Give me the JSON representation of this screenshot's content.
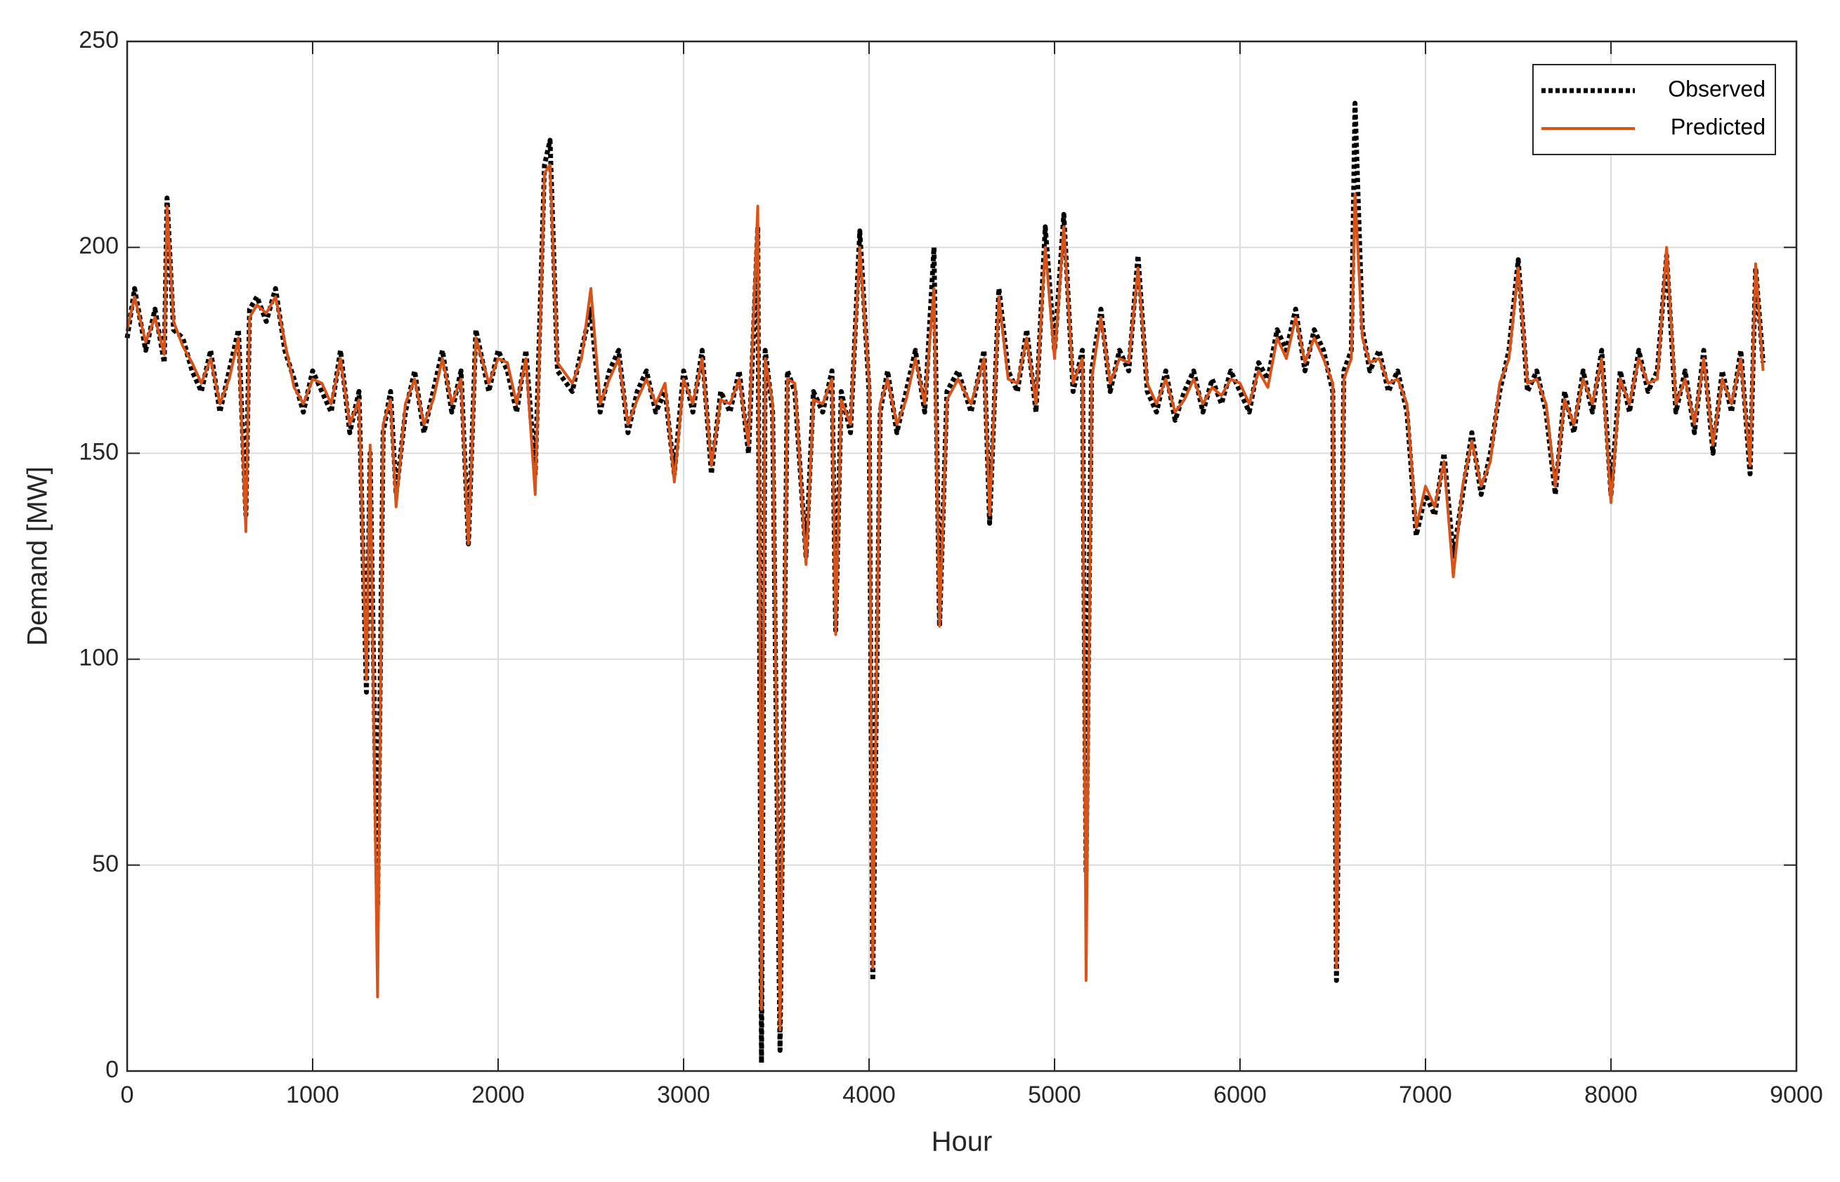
{
  "chart_data": {
    "type": "line",
    "x_label": "Hour",
    "y_label": "Demand [MW]",
    "xlim": [
      0,
      9000
    ],
    "xticks": [
      0,
      1000,
      2000,
      3000,
      4000,
      5000,
      6000,
      7000,
      8000,
      9000
    ],
    "ylim": [
      0,
      250
    ],
    "yticks": [
      0,
      50,
      100,
      150,
      200,
      250
    ],
    "grid": true,
    "legend": "upper right",
    "x": [
      0,
      40,
      100,
      150,
      200,
      215,
      250,
      300,
      350,
      400,
      450,
      500,
      550,
      600,
      640,
      660,
      700,
      750,
      800,
      850,
      900,
      950,
      1000,
      1050,
      1100,
      1150,
      1200,
      1250,
      1290,
      1310,
      1350,
      1380,
      1420,
      1450,
      1500,
      1550,
      1600,
      1650,
      1700,
      1750,
      1800,
      1840,
      1880,
      1950,
      2000,
      2050,
      2100,
      2150,
      2200,
      2250,
      2280,
      2320,
      2400,
      2450,
      2500,
      2550,
      2600,
      2650,
      2700,
      2750,
      2800,
      2850,
      2900,
      2950,
      3000,
      3050,
      3100,
      3150,
      3200,
      3250,
      3300,
      3350,
      3400,
      3420,
      3440,
      3480,
      3520,
      3560,
      3600,
      3660,
      3700,
      3750,
      3800,
      3820,
      3850,
      3900,
      3950,
      4000,
      4020,
      4060,
      4100,
      4150,
      4200,
      4250,
      4300,
      4350,
      4380,
      4420,
      4480,
      4550,
      4620,
      4650,
      4700,
      4750,
      4800,
      4850,
      4900,
      4950,
      5000,
      5050,
      5100,
      5150,
      5170,
      5200,
      5250,
      5300,
      5350,
      5400,
      5450,
      5500,
      5550,
      5600,
      5650,
      5700,
      5750,
      5800,
      5850,
      5900,
      5950,
      6000,
      6050,
      6100,
      6150,
      6200,
      6250,
      6300,
      6350,
      6400,
      6450,
      6500,
      6520,
      6560,
      6600,
      6620,
      6660,
      6700,
      6750,
      6800,
      6850,
      6900,
      6950,
      7000,
      7050,
      7100,
      7150,
      7200,
      7250,
      7300,
      7350,
      7400,
      7450,
      7500,
      7550,
      7600,
      7650,
      7700,
      7750,
      7800,
      7850,
      7900,
      7950,
      8000,
      8050,
      8100,
      8150,
      8200,
      8250,
      8300,
      8350,
      8400,
      8450,
      8500,
      8550,
      8600,
      8650,
      8700,
      8750,
      8780,
      8820
    ],
    "series": [
      {
        "name": "Observed",
        "color": "#000000",
        "style": "dotted",
        "values": [
          178,
          190,
          175,
          185,
          172,
          212,
          180,
          178,
          170,
          165,
          175,
          160,
          170,
          180,
          135,
          185,
          188,
          182,
          190,
          175,
          168,
          160,
          170,
          165,
          160,
          175,
          155,
          165,
          92,
          150,
          40,
          155,
          165,
          140,
          160,
          170,
          155,
          165,
          175,
          160,
          170,
          128,
          180,
          165,
          175,
          170,
          160,
          175,
          145,
          220,
          226,
          170,
          165,
          175,
          185,
          160,
          170,
          175,
          155,
          165,
          170,
          160,
          165,
          145,
          170,
          160,
          175,
          145,
          165,
          160,
          170,
          150,
          205,
          2,
          175,
          160,
          5,
          170,
          165,
          125,
          165,
          160,
          170,
          107,
          165,
          155,
          204,
          165,
          22,
          160,
          170,
          155,
          165,
          175,
          160,
          200,
          108,
          165,
          170,
          160,
          175,
          133,
          190,
          170,
          165,
          180,
          160,
          205,
          175,
          208,
          165,
          175,
          48,
          170,
          185,
          165,
          175,
          170,
          198,
          165,
          160,
          170,
          158,
          165,
          170,
          160,
          168,
          162,
          170,
          165,
          160,
          172,
          168,
          180,
          175,
          185,
          170,
          180,
          175,
          165,
          22,
          170,
          175,
          235,
          180,
          170,
          175,
          165,
          170,
          160,
          130,
          140,
          135,
          150,
          125,
          140,
          155,
          140,
          150,
          165,
          175,
          197,
          165,
          170,
          160,
          140,
          165,
          155,
          170,
          160,
          175,
          140,
          170,
          160,
          175,
          165,
          170,
          198,
          160,
          170,
          155,
          175,
          150,
          170,
          160,
          175,
          145,
          195,
          172
        ]
      },
      {
        "name": "Predicted",
        "color": "#d95319",
        "style": "solid",
        "values": [
          180,
          188,
          177,
          183,
          174,
          210,
          182,
          176,
          172,
          167,
          173,
          162,
          168,
          178,
          131,
          183,
          186,
          184,
          188,
          177,
          166,
          162,
          168,
          167,
          162,
          173,
          157,
          163,
          95,
          152,
          18,
          157,
          163,
          137,
          162,
          168,
          157,
          163,
          173,
          162,
          168,
          128,
          178,
          167,
          173,
          172,
          162,
          173,
          140,
          218,
          220,
          172,
          167,
          173,
          190,
          162,
          168,
          173,
          157,
          163,
          168,
          162,
          167,
          143,
          168,
          162,
          173,
          147,
          163,
          162,
          168,
          152,
          210,
          15,
          173,
          162,
          10,
          168,
          167,
          123,
          163,
          162,
          168,
          106,
          163,
          157,
          200,
          167,
          25,
          162,
          168,
          157,
          163,
          173,
          162,
          190,
          108,
          163,
          168,
          162,
          173,
          135,
          188,
          168,
          167,
          178,
          162,
          200,
          173,
          205,
          167,
          173,
          22,
          168,
          183,
          167,
          173,
          172,
          195,
          167,
          162,
          168,
          160,
          163,
          168,
          162,
          166,
          164,
          168,
          167,
          162,
          170,
          166,
          178,
          173,
          183,
          172,
          178,
          173,
          167,
          25,
          168,
          173,
          213,
          178,
          172,
          173,
          167,
          168,
          162,
          132,
          142,
          137,
          148,
          120,
          142,
          153,
          142,
          148,
          167,
          173,
          195,
          167,
          168,
          162,
          142,
          163,
          157,
          168,
          162,
          173,
          138,
          168,
          162,
          173,
          167,
          168,
          200,
          162,
          168,
          157,
          173,
          152,
          168,
          162,
          173,
          147,
          196,
          170
        ]
      }
    ]
  }
}
